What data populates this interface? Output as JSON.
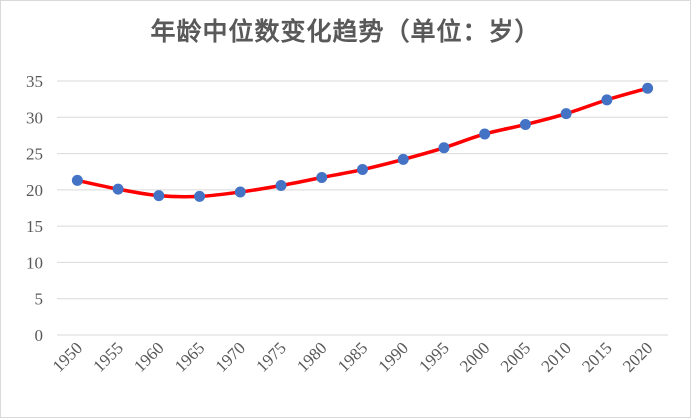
{
  "chart_data": {
    "type": "line",
    "title": "年龄中位数变化趋势（单位：岁）",
    "xlabel": "",
    "ylabel": "",
    "x": [
      "1950",
      "1955",
      "1960",
      "1965",
      "1970",
      "1975",
      "1980",
      "1985",
      "1990",
      "1995",
      "2000",
      "2005",
      "2010",
      "2015",
      "2020"
    ],
    "series": [
      {
        "values": [
          21.3,
          20.1,
          19.2,
          19.1,
          19.7,
          20.6,
          21.7,
          22.8,
          24.2,
          25.8,
          27.7,
          29.0,
          30.5,
          32.4,
          34.0
        ]
      }
    ],
    "ylim": [
      0,
      35
    ],
    "yticks": [
      "0",
      "5",
      "10",
      "15",
      "20",
      "25",
      "30",
      "35"
    ],
    "grid": true,
    "legend": "none",
    "smooth": true,
    "colors": {
      "line": "#ff0000",
      "marker": "#4472c4",
      "grid": "#d9d9d9",
      "text": "#595959"
    }
  }
}
